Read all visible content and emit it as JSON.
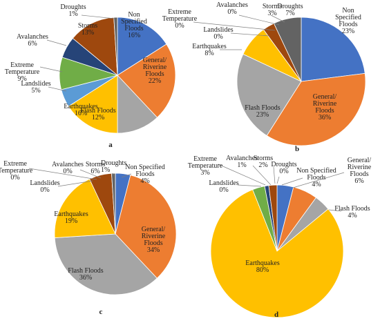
{
  "colors": {
    "Non Specified Floods": "#4472C4",
    "General/ Riverine Floods": "#ED7D31",
    "Flash Floods": "#A5A5A5",
    "Earthquakes": "#FFC000",
    "Landslides": "#5B9BD5",
    "Extreme Temperature": "#70AD47",
    "Avalanches": "#264478",
    "Storms": "#9E480E",
    "Droughts": "#636363"
  },
  "chart_data": [
    {
      "type": "pie",
      "panel": "a",
      "categories": [
        "Non Specified Floods",
        "General/ Riverine Floods",
        "Flash Floods",
        "Earthquakes",
        "Landslides",
        "Extreme Temperature",
        "Avalanches",
        "Storms",
        "Droughts"
      ],
      "values": [
        16,
        22,
        12,
        16,
        5,
        9,
        6,
        13,
        1
      ],
      "labels": [
        {
          "lines": [
            "Non",
            "Specified",
            "Floods",
            "16%"
          ]
        },
        {
          "lines": [
            "General/",
            "Riverine",
            "Floods",
            "22%"
          ]
        },
        {
          "lines": [
            "Flash Floods",
            "12%"
          ]
        },
        {
          "lines": [
            "Earthquakes",
            "16%"
          ]
        },
        {
          "lines": [
            "Landslides",
            "5%"
          ]
        },
        {
          "lines": [
            "Extreme",
            "Temperature",
            "9%"
          ]
        },
        {
          "lines": [
            "Avalanches",
            "6%"
          ]
        },
        {
          "lines": [
            "Storms",
            "13%"
          ]
        },
        {
          "lines": [
            "Droughts",
            "1%"
          ]
        }
      ]
    },
    {
      "type": "pie",
      "panel": "b",
      "categories": [
        "Non Specified Floods",
        "General/ Riverine Floods",
        "Flash Floods",
        "Earthquakes",
        "Landslides",
        "Extreme Temperature",
        "Avalanches",
        "Storms",
        "Droughts"
      ],
      "values": [
        23,
        36,
        23,
        8,
        0,
        0,
        0,
        3,
        7
      ],
      "labels": [
        {
          "lines": [
            "Non",
            "Specified",
            "Floods",
            "23%"
          ]
        },
        {
          "lines": [
            "General/",
            "Riverine",
            "Floods",
            "36%"
          ]
        },
        {
          "lines": [
            "Flash Floods",
            "23%"
          ]
        },
        {
          "lines": [
            "Earthquakes",
            "8%"
          ]
        },
        {
          "lines": [
            "Landslides",
            "0%"
          ]
        },
        {
          "lines": [
            "Extreme",
            "Temperature",
            "0%"
          ]
        },
        {
          "lines": [
            "Avalanches",
            "0%"
          ]
        },
        {
          "lines": [
            "Storms",
            "3%"
          ]
        },
        {
          "lines": [
            "Droughts",
            "7%"
          ]
        }
      ]
    },
    {
      "type": "pie",
      "panel": "c",
      "categories": [
        "Non Specified Floods",
        "General/ Riverine Floods",
        "Flash Floods",
        "Earthquakes",
        "Landslides",
        "Extreme Temperature",
        "Avalanches",
        "Storms",
        "Droughts"
      ],
      "values": [
        4,
        34,
        36,
        19,
        0,
        0,
        0,
        6,
        1
      ],
      "labels": [
        {
          "lines": [
            "Non Specified",
            "Floods",
            "4%"
          ]
        },
        {
          "lines": [
            "General/",
            "Riverine",
            "Floods",
            "34%"
          ]
        },
        {
          "lines": [
            "Flash Floods",
            "36%"
          ]
        },
        {
          "lines": [
            "Earthquakes",
            "19%"
          ]
        },
        {
          "lines": [
            "Landslides",
            "0%"
          ]
        },
        {
          "lines": [
            "Extreme",
            "Temperature",
            "0%"
          ]
        },
        {
          "lines": [
            "Avalanches",
            "0%"
          ]
        },
        {
          "lines": [
            "Storms",
            "6%"
          ]
        },
        {
          "lines": [
            "Droughts",
            "1%"
          ]
        }
      ]
    },
    {
      "type": "pie",
      "panel": "d",
      "categories": [
        "Non Specified Floods",
        "General/ Riverine Floods",
        "Flash Floods",
        "Earthquakes",
        "Landslides",
        "Extreme Temperature",
        "Avalanches",
        "Storms",
        "Droughts"
      ],
      "values": [
        4,
        6,
        4,
        80,
        0,
        3,
        1,
        2,
        0
      ],
      "labels": [
        {
          "lines": [
            "Non Specified",
            "Floods",
            "4%"
          ]
        },
        {
          "lines": [
            "General/",
            "Riverine",
            "Floods",
            "6%"
          ]
        },
        {
          "lines": [
            "Flash Floods",
            "4%"
          ]
        },
        {
          "lines": [
            "Earthquakes",
            "80%"
          ]
        },
        {
          "lines": [
            "Landslides",
            "0%"
          ]
        },
        {
          "lines": [
            "Extreme",
            "Temperature",
            "3%"
          ]
        },
        {
          "lines": [
            "Avalanches",
            "1%"
          ]
        },
        {
          "lines": [
            "Storms",
            "2%"
          ]
        },
        {
          "lines": [
            "Droughts",
            "0%"
          ]
        }
      ]
    }
  ]
}
